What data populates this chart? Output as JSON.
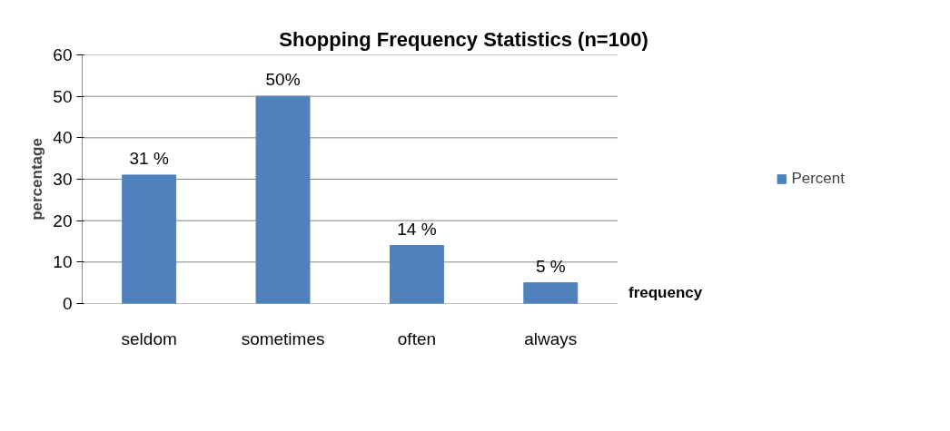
{
  "chart_data": {
    "type": "bar",
    "title": "Shopping Frequency Statistics (n=100)",
    "xlabel": "frequency",
    "ylabel": "percentage",
    "categories": [
      "seldom",
      "sometimes",
      "often",
      "always"
    ],
    "series": [
      {
        "name": "Percent",
        "color": "#4f81bd",
        "values": [
          31,
          50,
          14,
          5
        ],
        "value_labels": [
          "31 %",
          "50%",
          "14 %",
          "5 %"
        ]
      }
    ],
    "ylim": [
      0,
      60
    ],
    "yticks": [
      0,
      10,
      20,
      30,
      40,
      50,
      60
    ],
    "grid": "y",
    "legend": "right"
  }
}
